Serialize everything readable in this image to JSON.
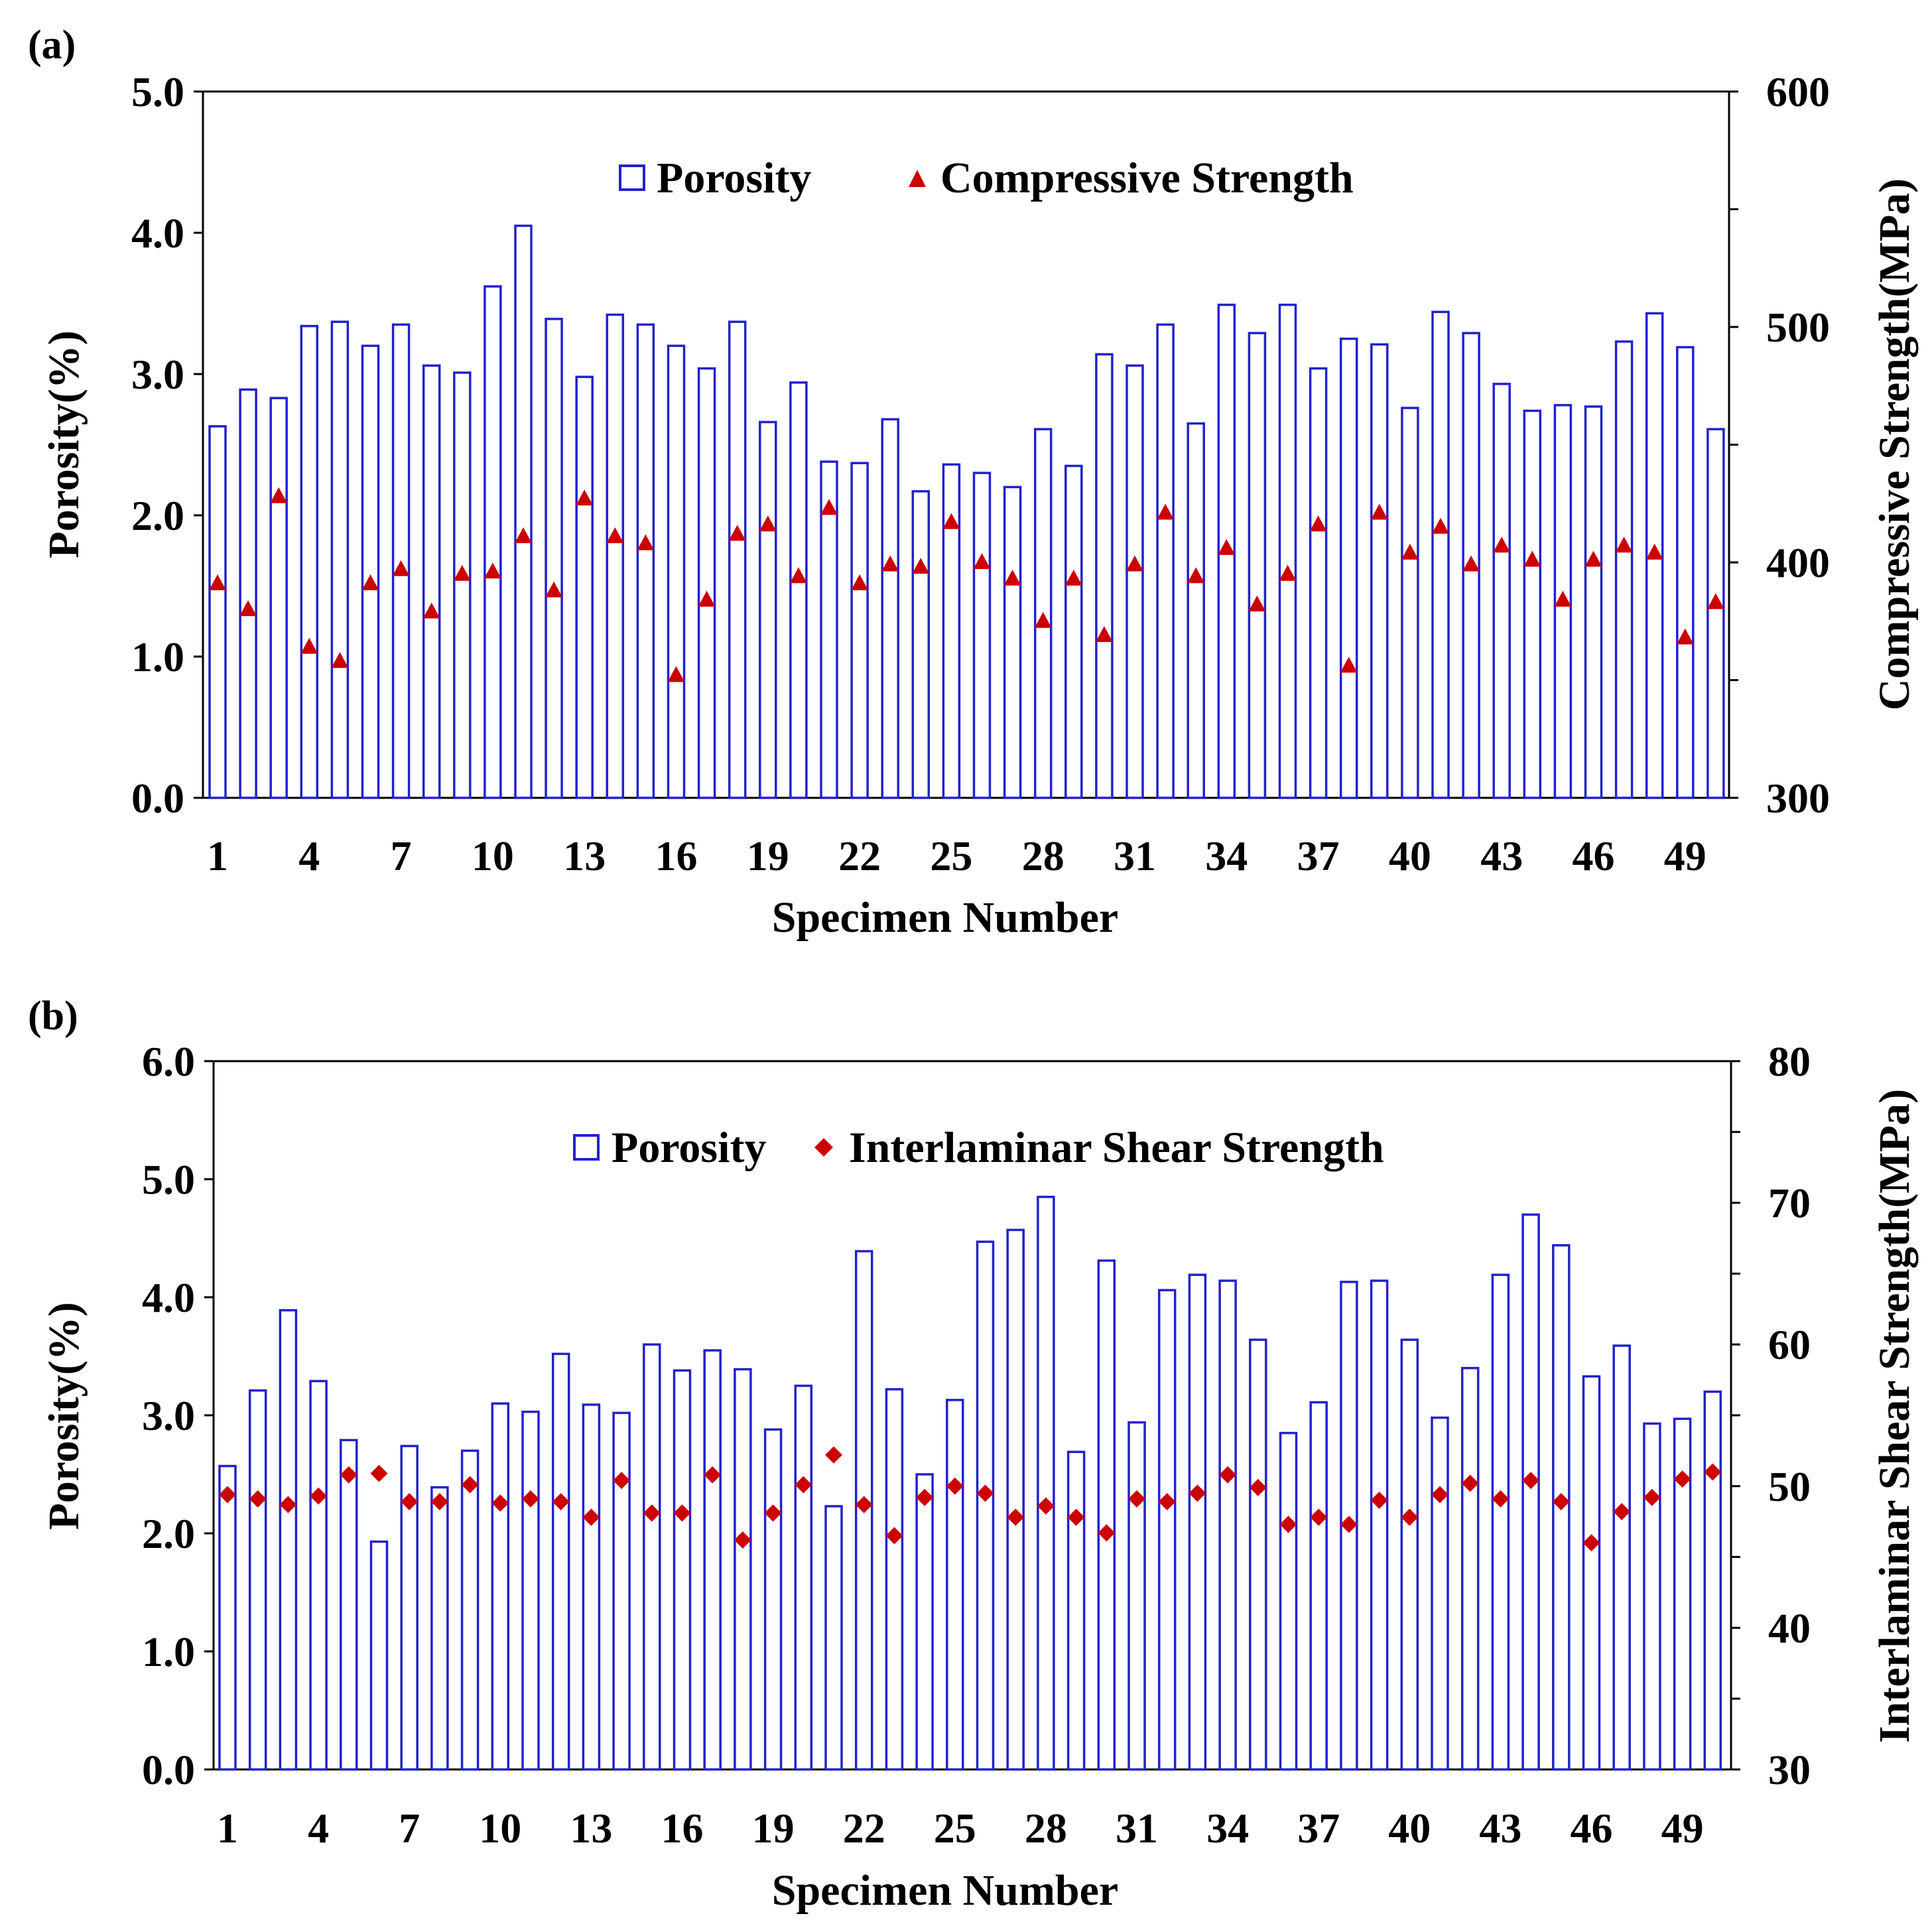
{
  "chart_data": [
    {
      "panel_label": "(a)",
      "type": "bar",
      "categories": [
        1,
        2,
        3,
        4,
        5,
        6,
        7,
        8,
        9,
        10,
        11,
        12,
        13,
        14,
        15,
        16,
        17,
        18,
        19,
        20,
        21,
        22,
        23,
        24,
        25,
        26,
        27,
        28,
        29,
        30,
        31,
        32,
        33,
        34,
        35,
        36,
        37,
        38,
        39,
        40,
        41,
        42,
        43,
        44,
        45,
        46,
        47,
        48,
        49,
        50
      ],
      "series": [
        {
          "name": "Porosity",
          "type": "bar",
          "axis": "left",
          "color": "#2222cc",
          "values": [
            2.63,
            2.89,
            2.83,
            3.34,
            3.37,
            3.2,
            3.35,
            3.06,
            3.01,
            3.62,
            4.05,
            3.39,
            2.98,
            3.42,
            3.35,
            3.2,
            3.04,
            3.37,
            2.66,
            2.94,
            2.38,
            2.37,
            2.68,
            2.17,
            2.36,
            2.3,
            2.2,
            2.61,
            2.35,
            3.14,
            3.06,
            3.35,
            2.65,
            3.49,
            3.29,
            3.49,
            3.04,
            3.25,
            3.21,
            2.76,
            3.44,
            3.29,
            2.93,
            2.74,
            2.78,
            2.77,
            3.23,
            3.43,
            3.19,
            2.61
          ]
        },
        {
          "name": "Compressive Strength",
          "type": "scatter",
          "marker": "triangle",
          "axis": "right",
          "color": "#cc0000",
          "values": [
            391,
            380,
            428,
            364,
            358,
            391,
            397,
            379,
            395,
            396,
            411,
            388,
            427,
            411,
            408,
            352,
            384,
            412,
            416,
            394,
            423,
            391,
            399,
            398,
            417,
            400,
            393,
            375,
            393,
            369,
            399,
            421,
            394,
            406,
            382,
            395,
            416,
            356,
            421,
            404,
            415,
            399,
            407,
            401,
            384,
            401,
            407,
            404,
            368,
            383
          ]
        }
      ],
      "xlabel": "Specimen Number",
      "ylabel_left": "Porosity(%)",
      "ylabel_right": "Compressive Strength(MPa)",
      "ylim_left": [
        0,
        5
      ],
      "ylim_right": [
        300,
        600
      ],
      "yticks_left": [
        "0.0",
        "1.0",
        "2.0",
        "3.0",
        "4.0",
        "5.0"
      ],
      "yticks_right": [
        "300",
        "400",
        "500",
        "600"
      ],
      "xtick_labels": [
        "1",
        "4",
        "7",
        "10",
        "13",
        "16",
        "19",
        "22",
        "25",
        "28",
        "31",
        "34",
        "37",
        "40",
        "43",
        "46",
        "49"
      ],
      "legend": [
        "Porosity",
        "Compressive Strength"
      ],
      "legend_position": "top-center",
      "grid": false
    },
    {
      "panel_label": "(b)",
      "type": "bar",
      "categories": [
        1,
        2,
        3,
        4,
        5,
        6,
        7,
        8,
        9,
        10,
        11,
        12,
        13,
        14,
        15,
        16,
        17,
        18,
        19,
        20,
        21,
        22,
        23,
        24,
        25,
        26,
        27,
        28,
        29,
        30,
        31,
        32,
        33,
        34,
        35,
        36,
        37,
        38,
        39,
        40,
        41,
        42,
        43,
        44,
        45,
        46,
        47,
        48,
        49,
        50
      ],
      "series": [
        {
          "name": "Porosity",
          "type": "bar",
          "axis": "left",
          "color": "#2222cc",
          "values": [
            2.57,
            3.21,
            3.89,
            3.29,
            2.79,
            1.93,
            2.74,
            2.39,
            2.7,
            3.1,
            3.03,
            3.52,
            3.09,
            3.02,
            3.6,
            3.38,
            3.55,
            3.39,
            2.88,
            3.25,
            2.23,
            4.39,
            3.22,
            2.5,
            3.13,
            4.47,
            4.57,
            4.85,
            2.69,
            4.31,
            2.94,
            4.06,
            4.19,
            4.14,
            3.64,
            2.85,
            3.11,
            4.13,
            4.14,
            3.64,
            2.98,
            3.4,
            4.19,
            4.7,
            4.44,
            3.33,
            3.59,
            2.93,
            2.97,
            3.2
          ]
        },
        {
          "name": "Interlaminar Shear Strength",
          "type": "scatter",
          "marker": "diamond",
          "axis": "right",
          "color": "#cc0000",
          "values": [
            49.4,
            49.1,
            48.7,
            49.3,
            50.8,
            50.9,
            48.9,
            48.9,
            50.1,
            48.8,
            49.1,
            48.9,
            47.8,
            50.4,
            48.1,
            48.1,
            50.8,
            46.2,
            48.1,
            50.1,
            52.2,
            48.7,
            46.5,
            49.2,
            50,
            49.5,
            47.8,
            48.6,
            47.8,
            46.7,
            49.1,
            48.9,
            49.5,
            50.8,
            49.9,
            47.3,
            47.8,
            47.3,
            49,
            47.8,
            49.4,
            50.2,
            49.1,
            50.4,
            48.9,
            46,
            48.2,
            49.2,
            50.5,
            51
          ]
        }
      ],
      "xlabel": "Specimen Number",
      "ylabel_left": "Porosity(%)",
      "ylabel_right": "Interlaminar Shear Strength(MPa)",
      "ylim_left": [
        0,
        6
      ],
      "ylim_right": [
        30,
        80
      ],
      "yticks_left": [
        "0.0",
        "1.0",
        "2.0",
        "3.0",
        "4.0",
        "5.0",
        "6.0"
      ],
      "yticks_right": [
        "30",
        "40",
        "50",
        "60",
        "70",
        "80"
      ],
      "xtick_labels": [
        "1",
        "4",
        "7",
        "10",
        "13",
        "16",
        "19",
        "22",
        "25",
        "28",
        "31",
        "34",
        "37",
        "40",
        "43",
        "46",
        "49"
      ],
      "legend": [
        "Porosity",
        "Interlaminar Shear Strength"
      ],
      "legend_position": "top-center",
      "grid": false
    }
  ]
}
